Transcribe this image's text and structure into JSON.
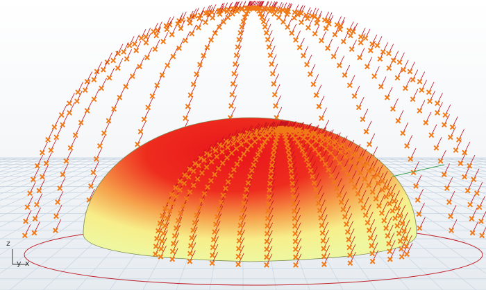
{
  "viewport": {
    "axis_labels": {
      "z": "z",
      "y": "y",
      "x": "x"
    }
  }
}
